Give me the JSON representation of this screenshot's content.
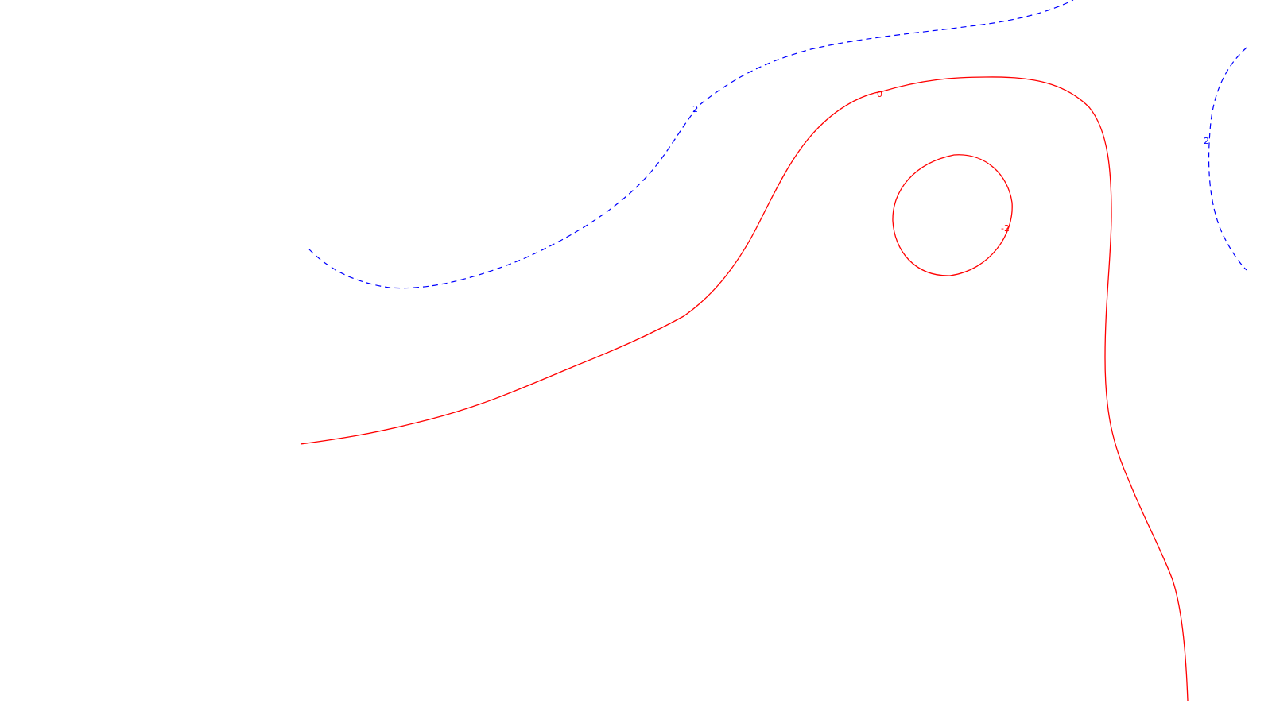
{
  "colors": {
    "background": "#ffffff",
    "positive_contour": "#0000ff",
    "zero_and_negative_contour": "#ff0000"
  },
  "contours": [
    {
      "id": "contour-upper-dashed",
      "level_label": "2",
      "color": "#0000ff",
      "style": "dashed"
    },
    {
      "id": "contour-right-dashed",
      "level_label": "2",
      "color": "#0000ff",
      "style": "dashed"
    },
    {
      "id": "contour-zero",
      "level_label": "0",
      "color": "#ff0000",
      "style": "solid"
    },
    {
      "id": "contour-loop",
      "level_label": "-2",
      "color": "#ff0000",
      "style": "solid"
    }
  ]
}
